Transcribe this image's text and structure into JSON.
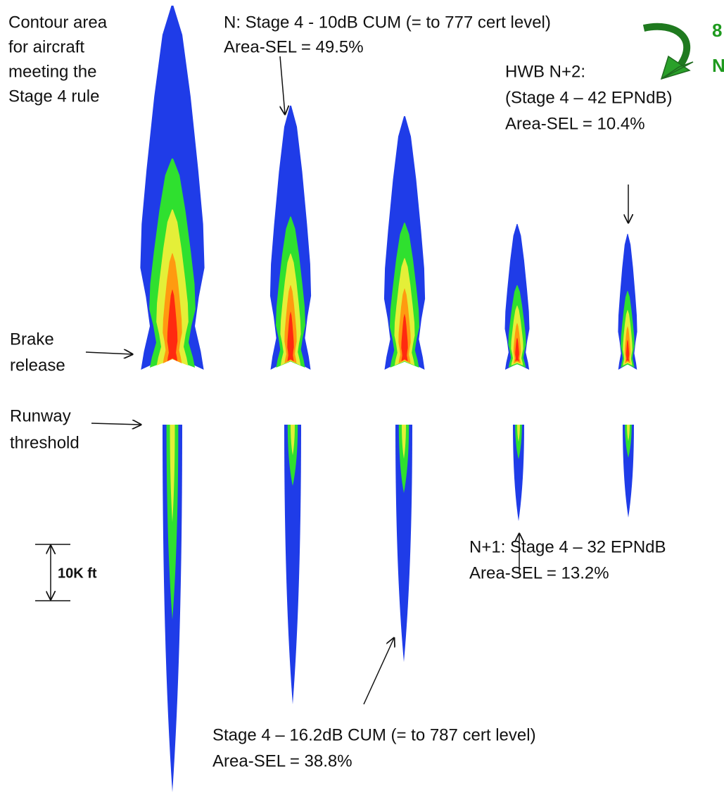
{
  "annotations": [
    {
      "lines": [
        "Contour area",
        "for aircraft",
        "meeting the",
        "Stage 4 rule"
      ]
    },
    {
      "lines": [
        "N: Stage 4 - 10dB CUM (= to 777 cert level)",
        "Area-SEL = 49.5%"
      ]
    },
    {
      "lines": [
        "8",
        "N"
      ]
    },
    {
      "lines": [
        "HWB N+2:",
        "(Stage 4 – 42 EPNdB)",
        "Area-SEL = 10.4%"
      ]
    },
    {
      "lines": [
        "Brake",
        "release"
      ]
    },
    {
      "lines": [
        "Runway",
        "threshold"
      ]
    },
    {
      "lines": [
        "N+1: Stage 4 – 32 EPNdB",
        "Area-SEL = 13.2%"
      ]
    },
    {
      "lines": [
        "Stage 4 – 16.2dB CUM (= to 787 cert level)",
        "Area-SEL = 38.8%"
      ]
    }
  ],
  "scale_bar": {
    "label": "10K ft"
  }
}
